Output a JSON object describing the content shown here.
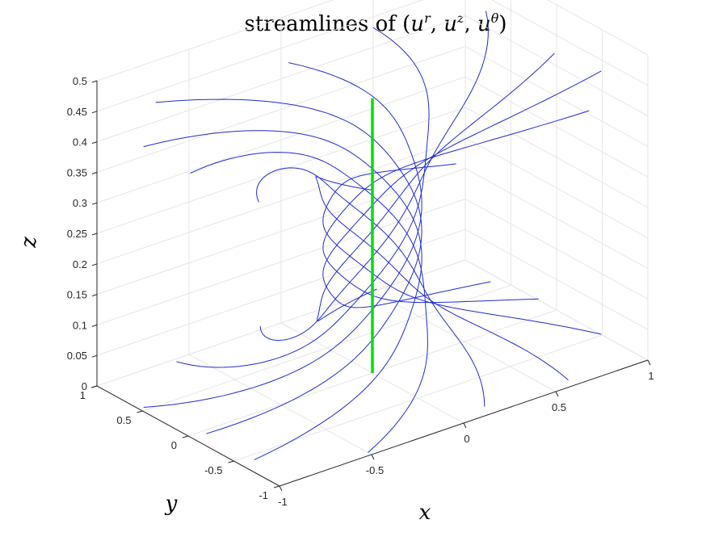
{
  "chart_data": {
    "type": "line",
    "subtype": "3d-streamlines",
    "title": {
      "pre": "streamlines of (",
      "comp1_base": "u",
      "comp1_sup": "r",
      "comp2_base": "u",
      "comp2_sup": "z",
      "comp3_base": "u",
      "comp3_sup": "θ",
      "post": ")"
    },
    "xlabel": "x",
    "ylabel": "y",
    "zlabel": "z",
    "xlim": [
      -1,
      1
    ],
    "ylim": [
      -1,
      1
    ],
    "zlim": [
      0,
      0.5
    ],
    "x_ticks": [
      "-1",
      "-0.5",
      "0",
      "0.5",
      "1"
    ],
    "y_ticks": [
      "-1",
      "-0.5",
      "0",
      "0.5",
      "1"
    ],
    "z_ticks": [
      "0",
      "0.05",
      "0.1",
      "0.15",
      "0.2",
      "0.25",
      "0.3",
      "0.35",
      "0.4",
      "0.45",
      "0.5"
    ],
    "grid": true,
    "view": "3d-perspective",
    "series": [
      {
        "kind": "streamline",
        "color": "#1f2bd6",
        "count": 12,
        "z_range": [
          0,
          0.45
        ]
      },
      {
        "kind": "axis-line",
        "color": "#00e000",
        "x": 0,
        "y": 0,
        "z_range": [
          0,
          0.45
        ]
      }
    ]
  }
}
